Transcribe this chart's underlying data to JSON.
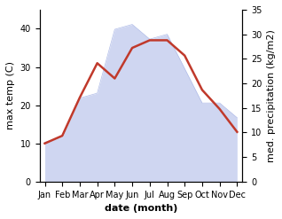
{
  "months": [
    "Jan",
    "Feb",
    "Mar",
    "Apr",
    "May",
    "Jun",
    "Jul",
    "Aug",
    "Sep",
    "Oct",
    "Nov",
    "Dec"
  ],
  "month_indices": [
    0,
    1,
    2,
    3,
    4,
    5,
    6,
    7,
    8,
    9,
    10,
    11
  ],
  "temperature": [
    10,
    12,
    22,
    31,
    27,
    35,
    37,
    37,
    33,
    24,
    19,
    13
  ],
  "precipitation": [
    8,
    9,
    17,
    18,
    31,
    32,
    29,
    30,
    23,
    16,
    16,
    13
  ],
  "temp_color": "#c0392b",
  "precip_color": "#b0bce8",
  "background_color": "#ffffff",
  "ylabel_left": "max temp (C)",
  "ylabel_right": "med. precipitation (kg/m2)",
  "xlabel": "date (month)",
  "ylim_left": [
    0,
    45
  ],
  "ylim_right": [
    0,
    35
  ],
  "yticks_left": [
    0,
    10,
    20,
    30,
    40
  ],
  "yticks_right": [
    0,
    5,
    10,
    15,
    20,
    25,
    30,
    35
  ],
  "temp_linewidth": 1.8,
  "label_fontsize": 8,
  "tick_fontsize": 7
}
